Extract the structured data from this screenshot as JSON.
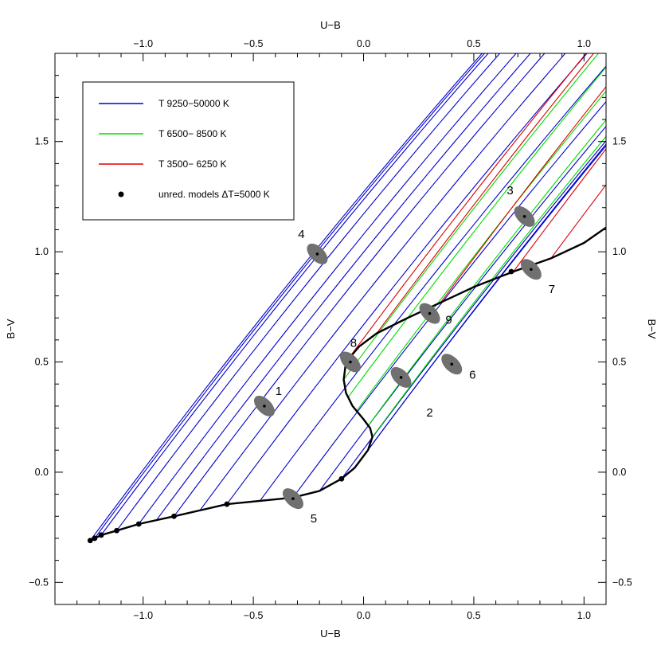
{
  "chart_data": {
    "type": "line",
    "title": "",
    "xlabel_bottom": "U−B",
    "xlabel_top": "U−B",
    "ylabel_left": "B−V",
    "ylabel_right": "B−V",
    "xlim": [
      -1.4,
      1.1
    ],
    "ylim": [
      -0.6,
      1.9
    ],
    "x_ticks": [
      -1.0,
      -0.5,
      0.0,
      0.5,
      1.0
    ],
    "x_tick_labels": [
      "−1.0",
      "−0.5",
      "0.0",
      "0.5",
      "1.0"
    ],
    "y_ticks": [
      -0.5,
      0.0,
      0.5,
      1.0,
      1.5
    ],
    "y_tick_labels": [
      "−0.5",
      "0.0",
      "0.5",
      "1.0",
      "1.5"
    ],
    "grid": false,
    "legend_position": "top-left",
    "legend": [
      {
        "label": "T 9250−50000 K",
        "color": "#0000cc",
        "kind": "line"
      },
      {
        "label": "T 6500− 8500 K",
        "color": "#00dd00",
        "kind": "line"
      },
      {
        "label": "T 3500− 6250 K",
        "color": "#dd0000",
        "kind": "line"
      },
      {
        "label": "unred. models ΔT=5000 K",
        "color": "#000000",
        "kind": "dot"
      }
    ],
    "reddening_slope": 1.35,
    "intrinsic_curve": [
      [
        -1.24,
        -0.31
      ],
      [
        -1.22,
        -0.3
      ],
      [
        -1.19,
        -0.285
      ],
      [
        -1.12,
        -0.265
      ],
      [
        -1.02,
        -0.235
      ],
      [
        -0.86,
        -0.2
      ],
      [
        -0.62,
        -0.145
      ],
      [
        -0.32,
        -0.115
      ],
      [
        -0.2,
        -0.085
      ],
      [
        -0.1,
        -0.03
      ],
      [
        -0.04,
        0.02
      ],
      [
        0.02,
        0.1
      ],
      [
        0.04,
        0.16
      ],
      [
        0.03,
        0.2
      ],
      [
        0.0,
        0.24
      ],
      [
        -0.05,
        0.3
      ],
      [
        -0.08,
        0.36
      ],
      [
        -0.09,
        0.42
      ],
      [
        -0.08,
        0.5
      ],
      [
        -0.02,
        0.57
      ],
      [
        0.06,
        0.63
      ],
      [
        0.2,
        0.7
      ],
      [
        0.35,
        0.77
      ],
      [
        0.5,
        0.84
      ],
      [
        0.68,
        0.91
      ],
      [
        0.85,
        0.97
      ],
      [
        1.0,
        1.04
      ],
      [
        1.1,
        1.11
      ]
    ],
    "intrinsic_points": [
      [
        -1.24,
        -0.31
      ],
      [
        -1.22,
        -0.3
      ],
      [
        -1.19,
        -0.285
      ],
      [
        -1.12,
        -0.265
      ],
      [
        -1.02,
        -0.235
      ],
      [
        -0.86,
        -0.2
      ],
      [
        -0.62,
        -0.145
      ],
      [
        -0.1,
        -0.03
      ],
      [
        0.67,
        0.91
      ]
    ],
    "reddening_lines": [
      {
        "group": "hot",
        "start": [
          -1.24,
          -0.31
        ]
      },
      {
        "group": "hot",
        "start": [
          -1.22,
          -0.3
        ]
      },
      {
        "group": "hot",
        "start": [
          -1.19,
          -0.285
        ]
      },
      {
        "group": "hot",
        "start": [
          -1.12,
          -0.265
        ]
      },
      {
        "group": "hot",
        "start": [
          -1.02,
          -0.235
        ]
      },
      {
        "group": "hot",
        "start": [
          -0.94,
          -0.218
        ]
      },
      {
        "group": "hot",
        "start": [
          -0.86,
          -0.2
        ]
      },
      {
        "group": "hot",
        "start": [
          -0.74,
          -0.17
        ]
      },
      {
        "group": "hot",
        "start": [
          -0.62,
          -0.145
        ]
      },
      {
        "group": "hot",
        "start": [
          -0.47,
          -0.13
        ]
      },
      {
        "group": "hot",
        "start": [
          -0.32,
          -0.115
        ]
      },
      {
        "group": "hot",
        "start": [
          -0.2,
          -0.085
        ]
      },
      {
        "group": "hot",
        "start": [
          -0.1,
          -0.03
        ]
      },
      {
        "group": "hot",
        "start": [
          -0.04,
          0.02
        ]
      },
      {
        "group": "hot",
        "start": [
          0.02,
          0.1
        ]
      },
      {
        "group": "medium",
        "start": [
          0.04,
          0.16
        ]
      },
      {
        "group": "medium",
        "start": [
          0.02,
          0.21
        ]
      },
      {
        "group": "medium",
        "start": [
          -0.03,
          0.28
        ]
      },
      {
        "group": "medium",
        "start": [
          -0.07,
          0.34
        ]
      },
      {
        "group": "medium",
        "start": [
          -0.09,
          0.42
        ]
      },
      {
        "group": "cool",
        "start": [
          -0.08,
          0.5
        ]
      },
      {
        "group": "cool",
        "start": [
          0.06,
          0.63
        ]
      },
      {
        "group": "cool",
        "start": [
          0.35,
          0.77
        ]
      },
      {
        "group": "cool",
        "start": [
          0.68,
          0.91
        ]
      },
      {
        "group": "cool",
        "start": [
          0.85,
          0.97
        ]
      }
    ],
    "objects": [
      {
        "label": "1",
        "x": -0.45,
        "y": 0.3
      },
      {
        "label": "2",
        "x": 0.17,
        "y": 0.43
      },
      {
        "label": "3",
        "x": 0.73,
        "y": 1.16
      },
      {
        "label": "4",
        "x": -0.21,
        "y": 0.99
      },
      {
        "label": "5",
        "x": -0.32,
        "y": -0.12
      },
      {
        "label": "6",
        "x": 0.4,
        "y": 0.49
      },
      {
        "label": "7",
        "x": 0.76,
        "y": 0.92
      },
      {
        "label": "8",
        "x": -0.06,
        "y": 0.5
      },
      {
        "label": "9",
        "x": 0.3,
        "y": 0.72
      }
    ],
    "object_ellipse_color": "#707070"
  }
}
